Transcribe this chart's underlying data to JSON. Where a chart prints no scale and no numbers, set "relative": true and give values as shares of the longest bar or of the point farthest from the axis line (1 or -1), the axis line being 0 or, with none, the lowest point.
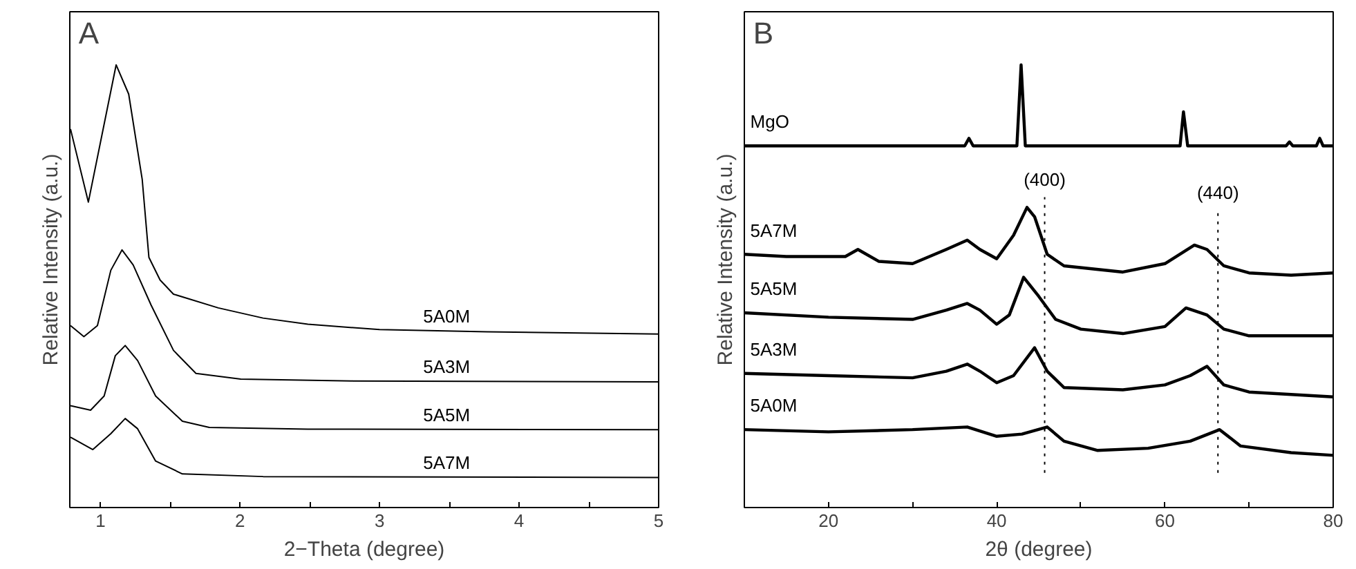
{
  "chart_data": [
    {
      "type": "line",
      "title": "A",
      "xlabel": "2−Theta (degree)",
      "ylabel": "Relative Intensity (a.u.)",
      "relative": true,
      "xlim": [
        0.78,
        5
      ],
      "xticks": [
        1,
        {
          "value": 1.5,
          "label": null
        },
        2,
        {
          "value": 2.5,
          "label": null
        },
        3,
        {
          "value": 3.5,
          "label": null
        },
        4,
        {
          "value": 4.5,
          "label": null
        },
        5
      ],
      "tick_labels": "x",
      "grid": false,
      "series": [
        {
          "name": "5A0M",
          "color": "#000000",
          "x": [
            0.785,
            0.913,
            1.112,
            1.202,
            1.299,
            1.347,
            1.427,
            1.523,
            1.844,
            2.165,
            2.486,
            3.0,
            3.77,
            5.0
          ],
          "values": [
            0.855,
            0.69,
            1.0,
            0.934,
            0.741,
            0.565,
            0.514,
            0.482,
            0.451,
            0.428,
            0.414,
            0.402,
            0.397,
            0.392
          ]
        },
        {
          "name": "5A3M",
          "color": "#000000",
          "x": [
            0.785,
            0.881,
            0.978,
            1.074,
            1.154,
            1.234,
            1.363,
            1.523,
            1.684,
            2.005,
            2.807,
            5.0
          ],
          "values": [
            0.411,
            0.386,
            0.411,
            0.536,
            0.582,
            0.548,
            0.457,
            0.355,
            0.303,
            0.29,
            0.286,
            0.284
          ]
        },
        {
          "name": "5A5M",
          "color": "#000000",
          "x": [
            0.785,
            0.929,
            1.026,
            1.106,
            1.177,
            1.266,
            1.395,
            1.587,
            1.78,
            2.486,
            5.0
          ],
          "values": [
            0.23,
            0.22,
            0.252,
            0.343,
            0.366,
            0.332,
            0.252,
            0.195,
            0.181,
            0.177,
            0.176
          ]
        },
        {
          "name": "5A7M",
          "color": "#000000",
          "x": [
            0.785,
            0.945,
            1.074,
            1.177,
            1.266,
            1.395,
            1.587,
            2.165,
            5.0
          ],
          "values": [
            0.159,
            0.131,
            0.167,
            0.201,
            0.178,
            0.105,
            0.076,
            0.07,
            0.068
          ]
        }
      ]
    },
    {
      "type": "line",
      "title": "B",
      "xlabel": "2θ (degree)",
      "ylabel": "Relative Intensity (a.u.)",
      "relative": true,
      "xlim": [
        10,
        80
      ],
      "xticks": [
        20,
        {
          "value": 30,
          "label": null
        },
        40,
        {
          "value": 50,
          "label": null
        },
        60,
        {
          "value": 70,
          "label": null
        },
        80
      ],
      "tick_labels": "x",
      "grid": false,
      "ref_lines": [
        {
          "axis": "x",
          "value": 45.7,
          "line_style": "dotted"
        },
        {
          "axis": "x",
          "value": 66.3,
          "line_style": "dotted"
        }
      ],
      "annotations": [
        "(400)",
        "(440)"
      ],
      "series": [
        {
          "name": "MgO",
          "color": "#000000",
          "x": [
            10,
            36.2,
            36.7,
            37.2,
            42.4,
            42.9,
            43.4,
            61.8,
            62.2,
            62.7,
            74.4,
            74.8,
            75.2,
            78.0,
            78.4,
            78.8,
            80
          ],
          "values": [
            0.817,
            0.817,
            0.834,
            0.817,
            0.817,
            1.0,
            0.817,
            0.817,
            0.894,
            0.817,
            0.817,
            0.826,
            0.817,
            0.817,
            0.834,
            0.817,
            0.817
          ]
        },
        {
          "name": "5A7M",
          "color": "#000000",
          "x": [
            10,
            15,
            22,
            23.5,
            26,
            30,
            34,
            36.5,
            38,
            40,
            42,
            43.6,
            44.5,
            46,
            48,
            55,
            60,
            63.5,
            65,
            67,
            70,
            75,
            80
          ],
          "values": [
            0.572,
            0.567,
            0.567,
            0.583,
            0.556,
            0.551,
            0.583,
            0.604,
            0.583,
            0.562,
            0.615,
            0.678,
            0.657,
            0.572,
            0.546,
            0.532,
            0.551,
            0.593,
            0.583,
            0.546,
            0.53,
            0.525,
            0.53
          ]
        },
        {
          "name": "5A5M",
          "color": "#000000",
          "x": [
            10,
            20,
            30,
            34,
            36.5,
            38,
            40,
            41.5,
            43.2,
            45,
            47,
            50,
            55,
            60,
            62.5,
            65,
            67,
            70,
            80
          ],
          "values": [
            0.44,
            0.43,
            0.425,
            0.446,
            0.461,
            0.446,
            0.414,
            0.435,
            0.52,
            0.477,
            0.425,
            0.403,
            0.393,
            0.409,
            0.451,
            0.435,
            0.403,
            0.388,
            0.388
          ]
        },
        {
          "name": "5A3M",
          "color": "#000000",
          "x": [
            10,
            20,
            30,
            34,
            36.5,
            38,
            40,
            42,
            44.5,
            46,
            48,
            55,
            60,
            63,
            65,
            67,
            70,
            80
          ],
          "values": [
            0.303,
            0.298,
            0.293,
            0.308,
            0.324,
            0.308,
            0.282,
            0.298,
            0.361,
            0.308,
            0.271,
            0.266,
            0.277,
            0.298,
            0.319,
            0.277,
            0.261,
            0.25
          ]
        },
        {
          "name": "5A0M",
          "color": "#000000",
          "x": [
            10,
            20,
            30,
            36.5,
            40,
            43,
            46,
            48,
            52,
            58,
            63,
            66.5,
            69,
            75,
            80
          ],
          "values": [
            0.176,
            0.171,
            0.176,
            0.182,
            0.161,
            0.166,
            0.182,
            0.15,
            0.129,
            0.134,
            0.15,
            0.176,
            0.139,
            0.124,
            0.118
          ]
        }
      ]
    }
  ]
}
